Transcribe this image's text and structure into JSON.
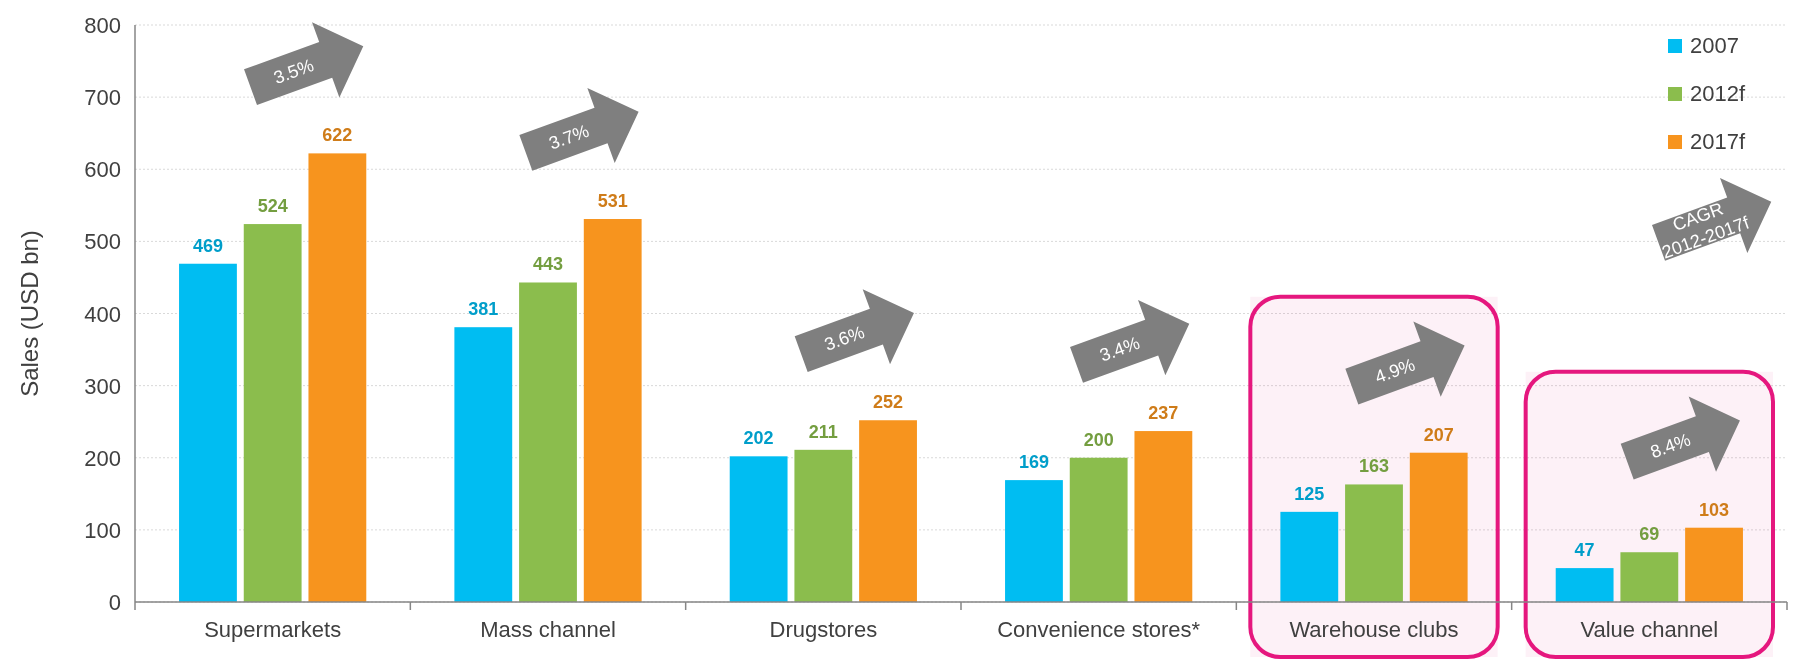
{
  "chart_data": {
    "type": "bar",
    "ylabel": "Sales (USD bn)",
    "categories": [
      "Supermarkets",
      "Mass channel",
      "Drugstores",
      "Convenience stores*",
      "Warehouse clubs",
      "Value channel"
    ],
    "series": [
      {
        "name": "2007",
        "color": "#00bdf2",
        "values": [
          469,
          381,
          202,
          169,
          125,
          47
        ]
      },
      {
        "name": "2012f",
        "color": "#8bbd4d",
        "values": [
          524,
          443,
          211,
          200,
          163,
          69
        ]
      },
      {
        "name": "2017f",
        "color": "#f7941e",
        "values": [
          622,
          531,
          252,
          237,
          207,
          103
        ]
      }
    ],
    "ylim": [
      0,
      800
    ],
    "yticks": [
      0,
      100,
      200,
      300,
      400,
      500,
      600,
      700,
      800
    ],
    "grid": "y",
    "legend": "top right",
    "data_labels": true,
    "annotations": [
      "3.5%",
      "3.7%",
      "3.6%",
      "3.4%",
      "4.9%",
      "8.4%",
      "CAGR\n2012-2017f"
    ],
    "bands": [
      {
        "axis": "x",
        "from": "Warehouse clubs",
        "to": "Warehouse clubs",
        "color": "#e5177e"
      },
      {
        "axis": "x",
        "from": "Value channel",
        "to": "Value channel",
        "color": "#e5177e"
      }
    ]
  }
}
